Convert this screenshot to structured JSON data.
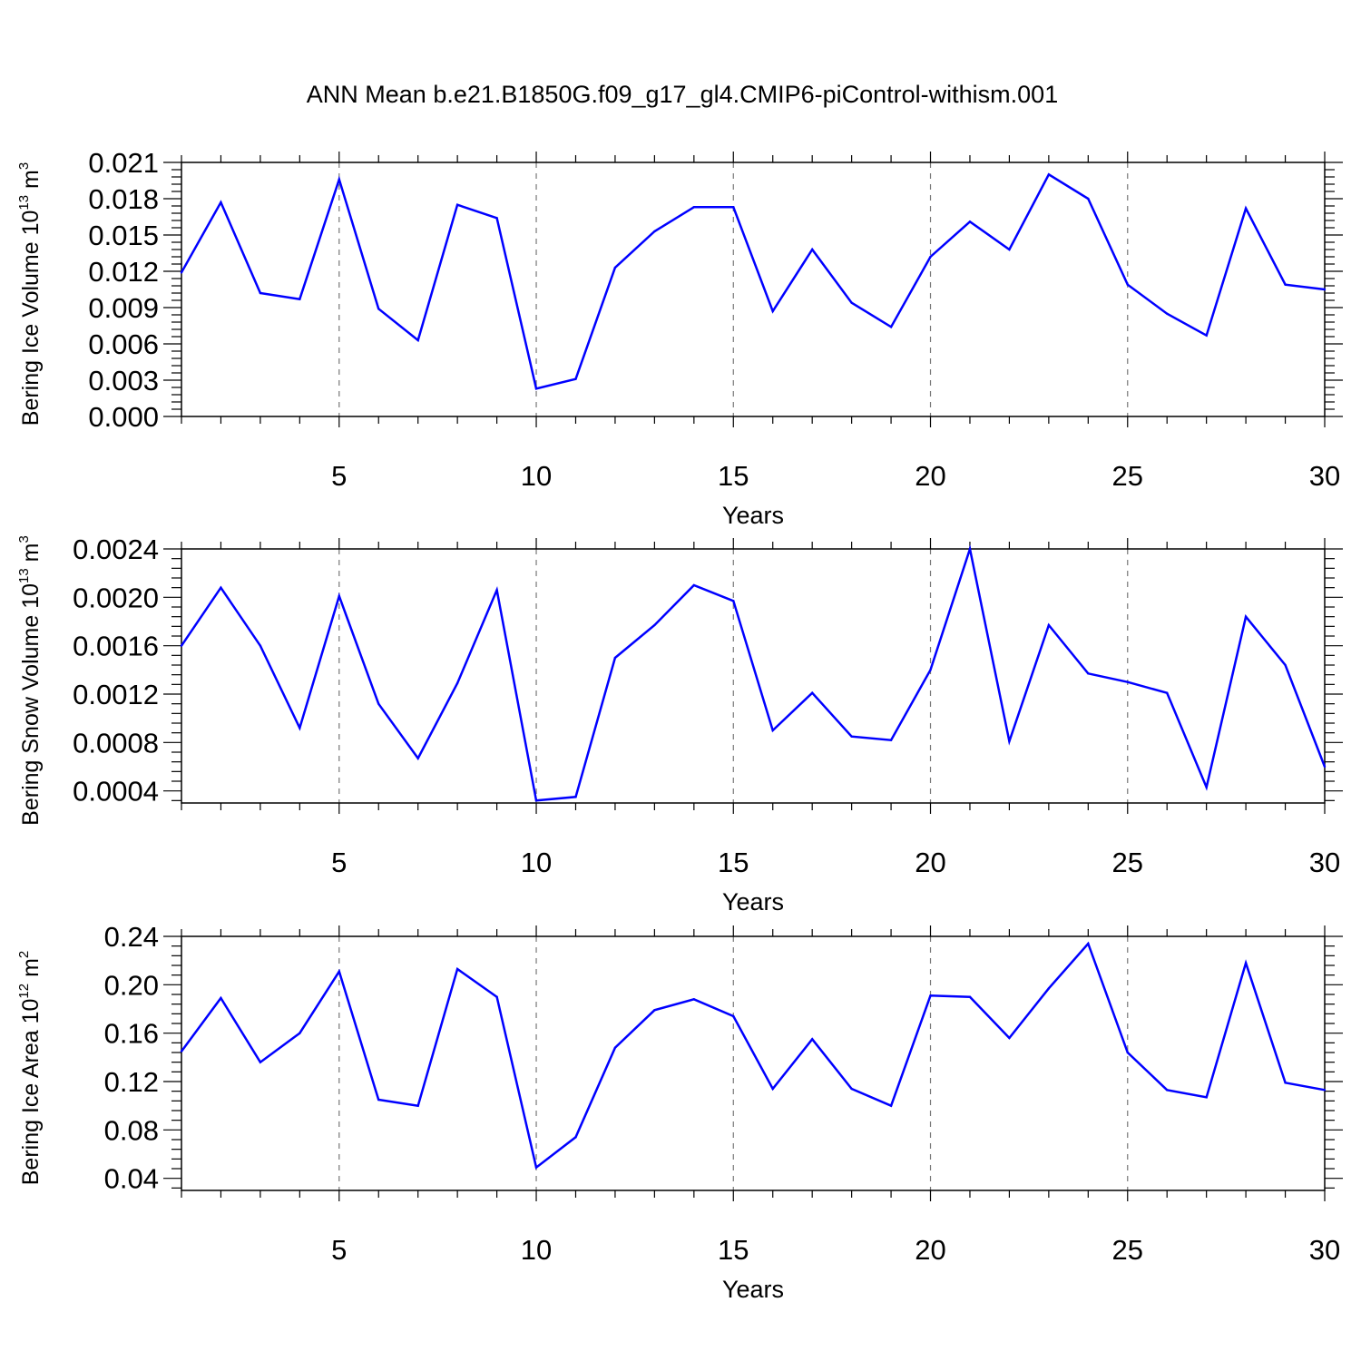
{
  "title": "ANN Mean b.e21.B1850G.f09_g17_gl4.CMIP6-piControl-withism.001",
  "chart_data": [
    {
      "type": "line",
      "ylabel": {
        "text": "Bering Ice Volume 10",
        "exponent": "13",
        "unit": " m",
        "unit_exponent": "3"
      },
      "xlabel": "Years",
      "xlim": [
        1,
        30
      ],
      "ylim": [
        0.0,
        0.021
      ],
      "xticks": [
        "5",
        "10",
        "15",
        "20",
        "25",
        "30"
      ],
      "yticks": [
        "0.000",
        "0.003",
        "0.006",
        "0.009",
        "0.012",
        "0.015",
        "0.018",
        "0.021"
      ],
      "grid_x": "dashed at 5, 10, 15, 20, 25",
      "color": "#0000ff",
      "x": [
        1,
        2,
        3,
        4,
        5,
        6,
        7,
        8,
        9,
        10,
        11,
        12,
        13,
        14,
        15,
        16,
        17,
        18,
        19,
        20,
        21,
        22,
        23,
        24,
        25,
        26,
        27,
        28,
        29,
        30
      ],
      "values": [
        0.0119,
        0.0177,
        0.0102,
        0.0097,
        0.0196,
        0.0089,
        0.0063,
        0.0175,
        0.0164,
        0.0023,
        0.0031,
        0.0123,
        0.0153,
        0.0173,
        0.0173,
        0.0087,
        0.0138,
        0.0094,
        0.0074,
        0.0132,
        0.0161,
        0.0138,
        0.02,
        0.018,
        0.0109,
        0.0085,
        0.0067,
        0.0172,
        0.0109,
        0.0105
      ]
    },
    {
      "type": "line",
      "ylabel": {
        "text": "Bering Snow Volume 10",
        "exponent": "13",
        "unit": " m",
        "unit_exponent": "3"
      },
      "xlabel": "Years",
      "xlim": [
        1,
        30
      ],
      "ylim": [
        0.0003,
        0.0024
      ],
      "xticks": [
        "5",
        "10",
        "15",
        "20",
        "25",
        "30"
      ],
      "yticks": [
        "0.0004",
        "0.0008",
        "0.0012",
        "0.0016",
        "0.0020",
        "0.0024"
      ],
      "grid_x": "dashed at 5, 10, 15, 20, 25",
      "color": "#0000ff",
      "x": [
        1,
        2,
        3,
        4,
        5,
        6,
        7,
        8,
        9,
        10,
        11,
        12,
        13,
        14,
        15,
        16,
        17,
        18,
        19,
        20,
        21,
        22,
        23,
        24,
        25,
        26,
        27,
        28,
        29,
        30
      ],
      "values": [
        0.0016,
        0.00208,
        0.0016,
        0.00092,
        0.00201,
        0.00112,
        0.00067,
        0.00129,
        0.00206,
        0.00032,
        0.00035,
        0.0015,
        0.00177,
        0.0021,
        0.00197,
        0.0009,
        0.00121,
        0.00085,
        0.00082,
        0.0014,
        0.0024,
        0.00081,
        0.00177,
        0.00137,
        0.0013,
        0.00121,
        0.00043,
        0.00184,
        0.00144,
        0.0006
      ]
    },
    {
      "type": "line",
      "ylabel": {
        "text": "Bering Ice Area 10",
        "exponent": "12",
        "unit": " m",
        "unit_exponent": "2"
      },
      "xlabel": "Years",
      "xlim": [
        1,
        30
      ],
      "ylim": [
        0.03,
        0.24
      ],
      "xticks": [
        "5",
        "10",
        "15",
        "20",
        "25",
        "30"
      ],
      "yticks": [
        "0.04",
        "0.08",
        "0.12",
        "0.16",
        "0.20",
        "0.24"
      ],
      "grid_x": "dashed at 5, 10, 15, 20, 25",
      "color": "#0000ff",
      "x": [
        1,
        2,
        3,
        4,
        5,
        6,
        7,
        8,
        9,
        10,
        11,
        12,
        13,
        14,
        15,
        16,
        17,
        18,
        19,
        20,
        21,
        22,
        23,
        24,
        25,
        26,
        27,
        28,
        29,
        30
      ],
      "values": [
        0.145,
        0.189,
        0.136,
        0.16,
        0.211,
        0.105,
        0.1,
        0.213,
        0.19,
        0.049,
        0.074,
        0.148,
        0.179,
        0.188,
        0.174,
        0.114,
        0.155,
        0.114,
        0.1,
        0.191,
        0.19,
        0.156,
        0.197,
        0.234,
        0.144,
        0.113,
        0.107,
        0.218,
        0.119,
        0.113
      ]
    }
  ]
}
